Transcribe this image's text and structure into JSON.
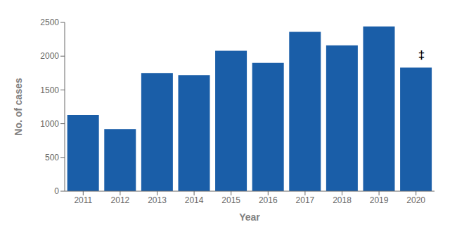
{
  "chart_data": {
    "type": "bar",
    "categories": [
      "2011",
      "2012",
      "2013",
      "2014",
      "2015",
      "2016",
      "2017",
      "2018",
      "2019",
      "2020"
    ],
    "values": [
      1130,
      920,
      1750,
      1720,
      2080,
      1900,
      2360,
      2160,
      2440,
      1830
    ],
    "color": "#1a5ea8",
    "xlabel": "Year",
    "ylabel": "No. of cases",
    "ylim": [
      0,
      2500
    ],
    "yticks": [
      0,
      500,
      1000,
      1500,
      2000,
      2500
    ],
    "grid": false,
    "annotations": [
      {
        "text": "‡",
        "x": "2020",
        "y": 1960
      }
    ]
  }
}
